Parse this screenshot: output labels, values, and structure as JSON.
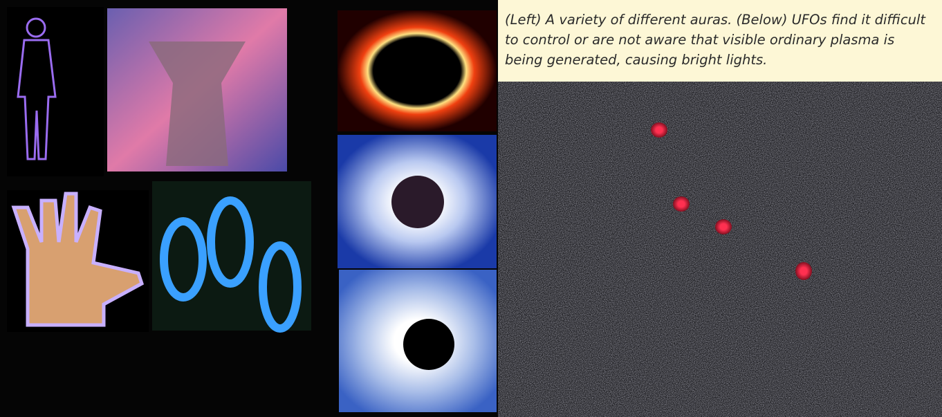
{
  "caption": "(Left) A variety of different auras. (Below) UFOs find it difficult to control or are not aware that visible ordinary plasma is being generated, causing bright lights."
}
